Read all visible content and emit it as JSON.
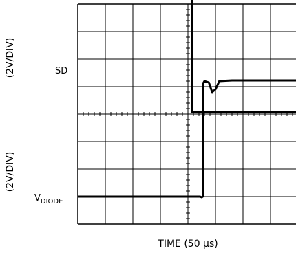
{
  "chart_data": {
    "type": "line",
    "title": "",
    "xlabel": "TIME (50 µs)",
    "x_unit": "µs",
    "x_per_div": 50,
    "x_divisions": 8,
    "xlim": [
      0,
      400
    ],
    "grid": true,
    "ylabels": {
      "top_scale": "(2V/DIV)",
      "bottom_scale": "(2V/DIV)"
    },
    "series": [
      {
        "name": "SD",
        "label_main": "SD",
        "label_sub": "",
        "scale": "2V/DIV",
        "points": [
          [
            0,
            8.4
          ],
          [
            207,
            8.4
          ],
          [
            207,
            0.15
          ],
          [
            212,
            0.15
          ],
          [
            400,
            0.15
          ]
        ]
      },
      {
        "name": "VDIODE",
        "label_main": "V",
        "label_sub": "DIODE",
        "scale": "2V/DIV",
        "points": [
          [
            0,
            0.0
          ],
          [
            222,
            0.0
          ],
          [
            225,
            -0.05
          ],
          [
            227,
            0.0
          ],
          [
            227,
            8.2
          ],
          [
            230,
            8.4
          ],
          [
            238,
            8.3
          ],
          [
            244,
            7.6
          ],
          [
            250,
            7.8
          ],
          [
            257,
            8.4
          ],
          [
            280,
            8.45
          ],
          [
            400,
            8.45
          ]
        ]
      }
    ]
  }
}
